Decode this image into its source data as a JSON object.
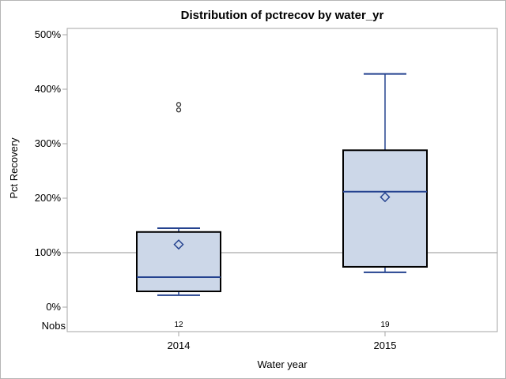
{
  "title": "Distribution of pctrecov by water_yr",
  "y_axis": {
    "label": "Pct Recovery",
    "ticks": [
      {
        "label": "500%",
        "value": 500
      },
      {
        "label": "400%",
        "value": 400
      },
      {
        "label": "300%",
        "value": 300
      },
      {
        "label": "200%",
        "value": 200
      },
      {
        "label": "100%",
        "value": 100
      },
      {
        "label": "0%",
        "value": 0
      }
    ]
  },
  "x_axis": {
    "label": "Water year",
    "categories": [
      "2014",
      "2015"
    ]
  },
  "nobs": {
    "label": "Nobs",
    "values": [
      "12",
      "19"
    ]
  },
  "chart_data": {
    "type": "boxplot",
    "title": "Distribution of pctrecov by water_yr",
    "xlabel": "Water year",
    "ylabel": "Pct Recovery",
    "ylim": [
      0,
      500
    ],
    "y_unit": "percent",
    "grid": false,
    "reference_line": 100,
    "categories": [
      "2014",
      "2015"
    ],
    "series": [
      {
        "category": "2014",
        "n": 12,
        "whisker_low": 22,
        "q1": 29,
        "median": 55,
        "mean": 115,
        "q3": 138,
        "whisker_high": 145,
        "outliers": [
          362,
          372
        ]
      },
      {
        "category": "2015",
        "n": 19,
        "whisker_low": 64,
        "q1": 74,
        "median": 212,
        "mean": 202,
        "q3": 288,
        "whisker_high": 428,
        "outliers": []
      }
    ]
  },
  "colors": {
    "accent_blue": "#24428f",
    "box_fill": "#ccd7e8",
    "box_border": "#000000",
    "frame_gray": "#a6a6a6",
    "reference_gray": "#a9a9a9",
    "outlier_stroke": "#333333",
    "text": "#000000",
    "background": "#ffffff"
  }
}
